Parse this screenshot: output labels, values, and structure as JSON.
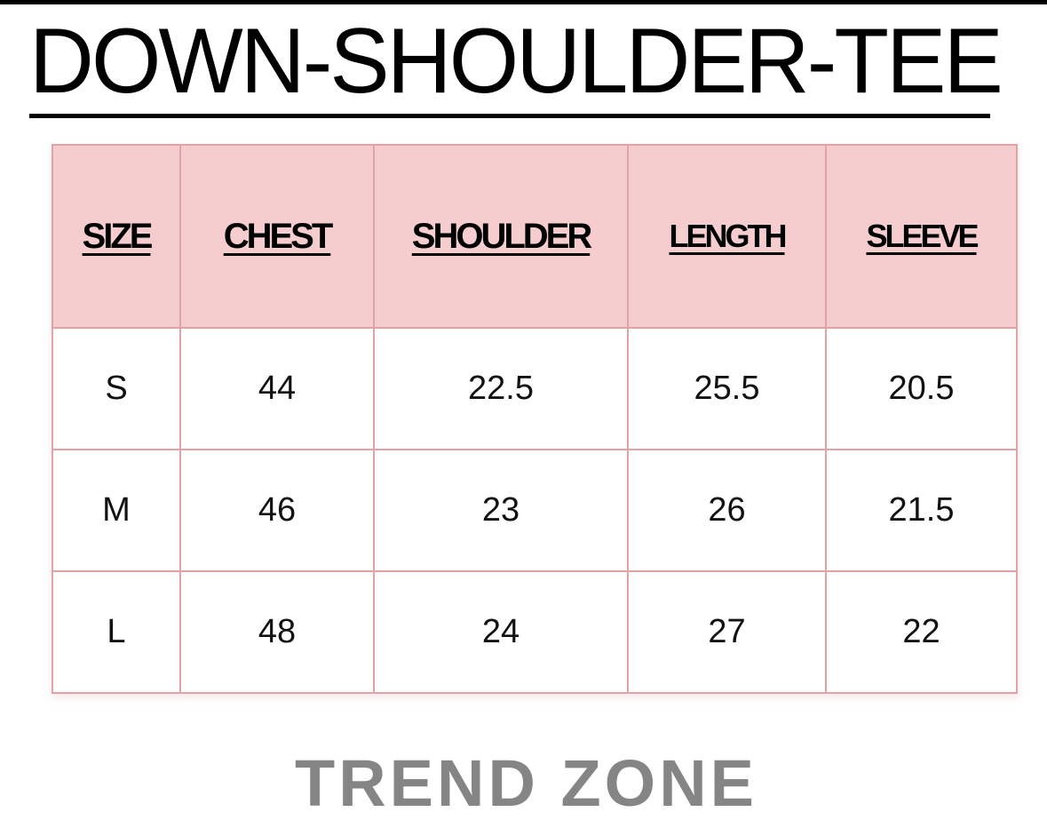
{
  "title": "DOWN-SHOULDER-TEE",
  "colors": {
    "header_bg": "#f6cdcf",
    "border": "#e3a3a6",
    "brand": "#858585"
  },
  "table": {
    "headers": [
      "SIZE",
      "CHEST",
      "SHOULDER",
      "LENGTH",
      "SLEEVE"
    ],
    "rows": [
      [
        "S",
        "44",
        "22.5",
        "25.5",
        "20.5"
      ],
      [
        "M",
        "46",
        "23",
        "26",
        "21.5"
      ],
      [
        "L",
        "48",
        "24",
        "27",
        "22"
      ]
    ]
  },
  "brand": "TREND ZONE"
}
